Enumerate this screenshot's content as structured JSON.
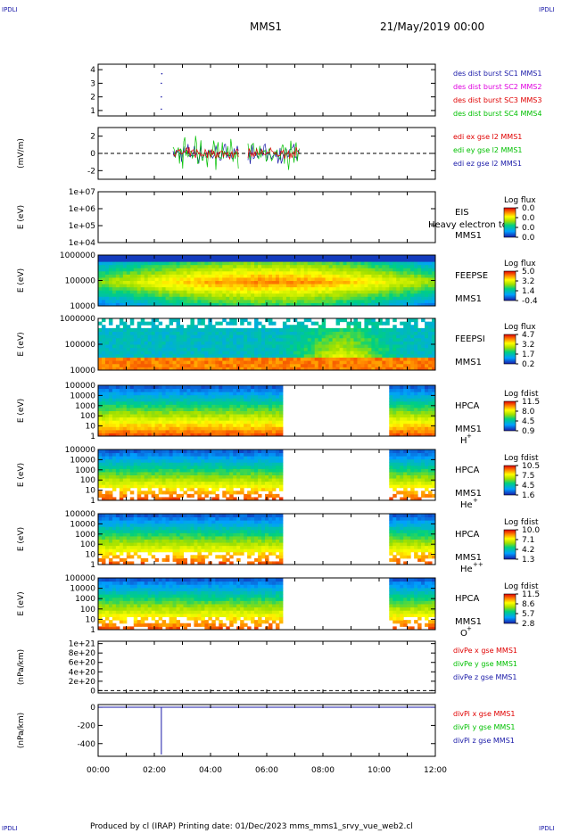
{
  "header": {
    "corner_tl": "IPDLI",
    "corner_tr": "IPDLI",
    "mission": "MMS1",
    "datetime": "21/May/2019 00:00"
  },
  "footer": {
    "corner_bl": "IPDLI",
    "corner_br": "IPDLI",
    "text": "Produced by cl (IRAP)    Printing date: 01/Dec/2023    mms_mms1_srvy_vue_web2.cl"
  },
  "colors": {
    "blue": "#1a1aa8",
    "magenta": "#e000e0",
    "red": "#e00000",
    "green": "#00c000",
    "darkred": "#c00000"
  },
  "chart_data": [
    {
      "type": "scatter",
      "ylabel": "",
      "yticks": [
        "1",
        "2",
        "3",
        "4"
      ],
      "ylim": [
        0.6,
        4.4
      ],
      "xlim": [
        "00:00",
        "12:00"
      ],
      "series": [
        {
          "name": "des dist burst SC1 MMS1",
          "color": "#1a1aa8",
          "x": [
            "02:15",
            "02:15",
            "02:15",
            "02:16"
          ],
          "y": [
            3.0,
            2.0,
            1.1,
            3.7
          ]
        },
        {
          "name": "des dist burst SC2 MMS2",
          "color": "#e000e0",
          "x": [],
          "y": []
        },
        {
          "name": "des dist burst SC3 MMS3",
          "color": "#e00000",
          "x": [],
          "y": []
        },
        {
          "name": "des dist burst SC4 MMS4",
          "color": "#00c000",
          "x": [],
          "y": []
        }
      ]
    },
    {
      "type": "line",
      "ylabel": "(mV/m)",
      "yticks": [
        "-2",
        "0",
        "2"
      ],
      "ylim": [
        -3,
        3
      ],
      "xlim": [
        "00:00",
        "12:00"
      ],
      "zero_line": true,
      "series": [
        {
          "name": "edi ex gse l2 MMS1",
          "color": "#e00000"
        },
        {
          "name": "edi ey gse l2 MMS1",
          "color": "#00c000"
        },
        {
          "name": "edi ez gse l2 MMS1",
          "color": "#1a1aa8"
        }
      ],
      "active_intervals": [
        [
          "02:40",
          "05:00"
        ],
        [
          "05:20",
          "07:10"
        ]
      ]
    },
    {
      "type": "heatmap",
      "ylabel": "E (eV)",
      "yticks": [
        "1e+04",
        "1e+05",
        "1e+06",
        "1e+07"
      ],
      "labels": [
        "EIS",
        "MMS1"
      ],
      "overlay_text": "Heavy electron tof",
      "colorbar": {
        "title": "Log flux",
        "ticks": [
          "0.0",
          "0.0",
          "0.0",
          "0.0"
        ]
      }
    },
    {
      "type": "heatmap",
      "ylabel": "E (eV)",
      "yticks": [
        "10000",
        "100000",
        "1000000"
      ],
      "labels": [
        "FEEPSE",
        "MMS1"
      ],
      "colorbar": {
        "title": "Log flux",
        "ticks": [
          "5.0",
          "3.2",
          "1.4",
          "-0.4"
        ]
      }
    },
    {
      "type": "heatmap",
      "ylabel": "E (eV)",
      "yticks": [
        "10000",
        "100000",
        "1000000"
      ],
      "labels": [
        "FEEPSI",
        "MMS1"
      ],
      "colorbar": {
        "title": "Log flux",
        "ticks": [
          "4.7",
          "3.2",
          "1.7",
          "0.2"
        ]
      }
    },
    {
      "type": "heatmap",
      "ylabel": "E (eV)",
      "yticks": [
        "1",
        "10",
        "100",
        "1000",
        "10000",
        "100000"
      ],
      "labels": [
        "HPCA",
        "MMS1"
      ],
      "species": "H",
      "species_sup": "+",
      "data_gap": [
        "06:40",
        "10:15"
      ],
      "colorbar": {
        "title": "Log fdist",
        "ticks": [
          "11.5",
          "8.0",
          "4.5",
          "0.9"
        ]
      }
    },
    {
      "type": "heatmap",
      "ylabel": "E (eV)",
      "yticks": [
        "1",
        "10",
        "100",
        "1000",
        "10000",
        "100000"
      ],
      "labels": [
        "HPCA",
        "MMS1"
      ],
      "species": "He",
      "species_sup": "+",
      "data_gap": [
        "06:40",
        "10:15"
      ],
      "colorbar": {
        "title": "Log fdist",
        "ticks": [
          "10.5",
          "7.5",
          "4.5",
          "1.6"
        ]
      }
    },
    {
      "type": "heatmap",
      "ylabel": "E (eV)",
      "yticks": [
        "1",
        "10",
        "100",
        "1000",
        "10000",
        "100000"
      ],
      "labels": [
        "HPCA",
        "MMS1"
      ],
      "species": "He",
      "species_sup": "++",
      "data_gap": [
        "06:40",
        "10:15"
      ],
      "colorbar": {
        "title": "Log fdist",
        "ticks": [
          "10.0",
          "7.1",
          "4.2",
          "1.3"
        ]
      }
    },
    {
      "type": "heatmap",
      "ylabel": "E (eV)",
      "yticks": [
        "1",
        "10",
        "100",
        "1000",
        "10000",
        "100000"
      ],
      "labels": [
        "HPCA",
        "MMS1"
      ],
      "species": "O",
      "species_sup": "+",
      "data_gap": [
        "06:40",
        "10:15"
      ],
      "colorbar": {
        "title": "Log fdist",
        "ticks": [
          "11.5",
          "8.6",
          "5.7",
          "2.8"
        ]
      }
    },
    {
      "type": "line",
      "ylabel": "(nPa/km)",
      "yticks": [
        "0",
        "2e+20",
        "4e+20",
        "6e+20",
        "8e+20",
        "1e+21"
      ],
      "ylim": [
        -5e+19,
        1.05e+21
      ],
      "xlim": [
        "00:00",
        "12:00"
      ],
      "zero_line": true,
      "series": [
        {
          "name": "divPe x gse MMS1",
          "color": "#e00000"
        },
        {
          "name": "divPe y gse MMS1",
          "color": "#00c000"
        },
        {
          "name": "divPe z gse MMS1",
          "color": "#1a1aa8"
        }
      ]
    },
    {
      "type": "line",
      "ylabel": "(nPa/km)",
      "yticks": [
        "-400",
        "-200",
        "0"
      ],
      "ylim": [
        -540,
        30
      ],
      "xlim": [
        "00:00",
        "12:00"
      ],
      "zero_line": true,
      "xticks": [
        "00:00",
        "02:00",
        "04:00",
        "06:00",
        "08:00",
        "10:00",
        "12:00"
      ],
      "series": [
        {
          "name": "divPi x gse MMS1",
          "color": "#e00000"
        },
        {
          "name": "divPi y gse MMS1",
          "color": "#00c000"
        },
        {
          "name": "divPi z gse MMS1",
          "color": "#1a1aa8",
          "x": [
            "00:00",
            "02:15",
            "02:15",
            "02:15",
            "12:00"
          ],
          "y": [
            0,
            0,
            -520,
            0,
            0
          ]
        }
      ]
    }
  ]
}
